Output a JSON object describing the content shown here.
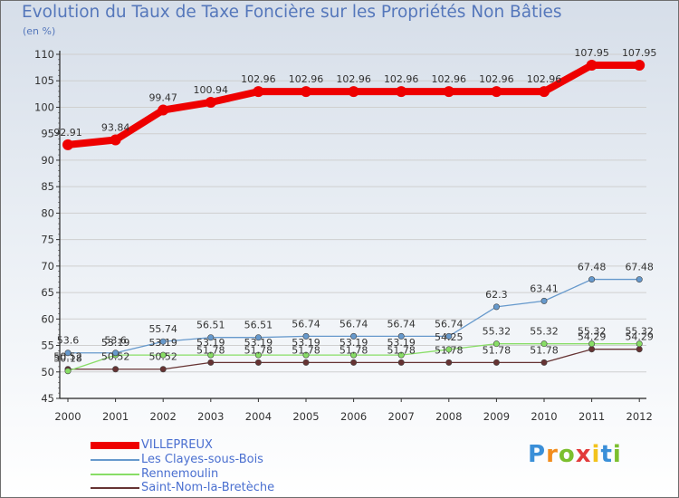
{
  "page": {
    "title": "Evolution du Taux de Taxe Foncière sur les Propriétés Non Bâties",
    "unit": "(en %)",
    "logo": [
      "P",
      "r",
      "o",
      "x",
      "i",
      "t",
      "i"
    ]
  },
  "chart_data": {
    "type": "line",
    "title": "Evolution du Taux de Taxe Foncière sur les Propriétés Non Bâties",
    "ylabel": "(en %)",
    "xlabel": "",
    "ylim": [
      45,
      110
    ],
    "yticks": [
      45,
      50,
      55,
      60,
      65,
      70,
      75,
      80,
      85,
      90,
      95,
      100,
      105,
      110
    ],
    "categories": [
      "2000",
      "2001",
      "2002",
      "2003",
      "2004",
      "2005",
      "2006",
      "2007",
      "2008",
      "2009",
      "2010",
      "2011",
      "2012"
    ],
    "series": [
      {
        "name": "VILLEPREUX",
        "color": "#ee0000",
        "width": 8,
        "values": [
          92.91,
          93.84,
          99.47,
          100.94,
          102.96,
          102.96,
          102.96,
          102.96,
          102.96,
          102.96,
          102.96,
          107.95,
          107.95
        ],
        "labels": [
          "92.91",
          "93.84",
          "99.47",
          "100.94",
          "102.96",
          "102.96",
          "102.96",
          "102.96",
          "102.96",
          "102.96",
          "102.96",
          "107.95",
          "107.95"
        ]
      },
      {
        "name": "Les Clayes-sous-Bois",
        "color": "#6699cc",
        "width": 1.3,
        "values": [
          53.6,
          53.6,
          55.74,
          56.51,
          56.51,
          56.74,
          56.74,
          56.74,
          56.74,
          62.3,
          63.41,
          67.48,
          67.48
        ],
        "labels": [
          "53.6",
          "53.6",
          "55.74",
          "56.51",
          "56.51",
          "56.74",
          "56.74",
          "56.74",
          "56.74",
          "62.3",
          "63.41",
          "67.48",
          "67.48"
        ]
      },
      {
        "name": "Rennemoulin",
        "color": "#88dd66",
        "width": 1.3,
        "values": [
          50.18,
          53.19,
          53.19,
          53.19,
          53.19,
          53.19,
          53.19,
          53.19,
          54.25,
          55.32,
          55.32,
          55.32,
          55.32
        ],
        "labels": [
          "50.18",
          "53.19",
          "53.19",
          "53.19",
          "53.19",
          "53.19",
          "53.19",
          "53.19",
          "54.25",
          "55.32",
          "55.32",
          "55.32",
          "55.32"
        ]
      },
      {
        "name": "Saint-Nom-la-Bretèche",
        "color": "#663333",
        "width": 1.3,
        "values": [
          50.52,
          50.52,
          50.52,
          51.78,
          51.78,
          51.78,
          51.78,
          51.78,
          51.78,
          51.78,
          51.78,
          54.29,
          54.29
        ],
        "labels": [
          "50.52",
          "50.52",
          "50.52",
          "51.78",
          "51.78",
          "51.78",
          "51.78",
          "51.78",
          "51.78",
          "51.78",
          "51.78",
          "54.29",
          "54.29"
        ]
      }
    ],
    "legend_position": "bottom-left"
  }
}
